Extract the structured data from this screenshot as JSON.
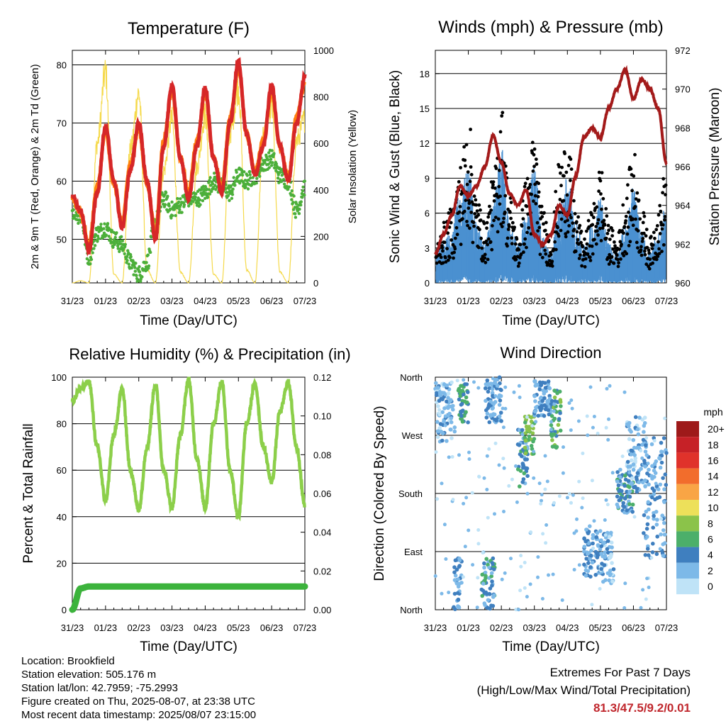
{
  "x_ticks": [
    "31/23",
    "01/23",
    "02/23",
    "03/23",
    "04/23",
    "05/23",
    "06/23",
    "07/23"
  ],
  "colors": {
    "temp_2m": "#d62728",
    "temp_9m": "#ff7f0e",
    "dewpoint": "#4caf3a",
    "solar": "#f5d94a",
    "sonic_wind": "#4a90d0",
    "gust": "#000000",
    "pressure": "#a31a1a",
    "humidity": "#8ccf4a",
    "rain": "#3cb33c"
  },
  "chart_data": [
    {
      "type": "line",
      "title": "Temperature (F)",
      "xlabel": "Time (Day/UTC)",
      "ylabel": "2m & 9m T (Red, Orange) & 2m Td (Green)",
      "y2label": "Solar Insolation (Yellow)",
      "ylim": [
        42.5,
        82.5
      ],
      "yticks": [
        50,
        60,
        70,
        80
      ],
      "y2lim": [
        0,
        1000
      ],
      "y2ticks": [
        0,
        200,
        400,
        600,
        800,
        1000
      ],
      "x": [
        0,
        0.25,
        0.5,
        0.75,
        1,
        1.25,
        1.5,
        1.75,
        2,
        2.25,
        2.5,
        2.75,
        3,
        3.25,
        3.5,
        3.75,
        4,
        4.25,
        4.5,
        4.75,
        5,
        5.25,
        5.5,
        5.75,
        6,
        6.25,
        6.5,
        6.75,
        7
      ],
      "series": [
        {
          "name": "2m T",
          "values": [
            57.5,
            55,
            48,
            58,
            69.5,
            60,
            52,
            62,
            70,
            60,
            50,
            66,
            76.5,
            64,
            57,
            66,
            76,
            64,
            58,
            70,
            80.5,
            68,
            61,
            66,
            76.5,
            66,
            60,
            70,
            78
          ]
        },
        {
          "name": "9m T",
          "values": [
            57,
            54.5,
            49,
            59,
            68.5,
            59.5,
            53,
            63,
            69,
            59.5,
            51,
            67,
            75.5,
            64,
            58,
            67,
            75,
            64,
            59,
            71,
            79.5,
            68,
            61.5,
            67,
            75.5,
            66,
            60.5,
            71,
            77
          ]
        },
        {
          "name": "2m Td",
          "values": [
            55,
            54,
            47,
            51,
            52,
            50,
            49,
            46,
            44,
            46,
            53,
            57,
            55,
            56,
            57,
            57,
            58,
            60,
            59,
            58,
            61,
            60,
            61,
            63,
            64,
            61,
            60,
            55,
            59
          ]
        },
        {
          "name": "Solar Insolation",
          "values": [
            0,
            10,
            0,
            650,
            980,
            40,
            0,
            620,
            880,
            60,
            0,
            520,
            760,
            50,
            0,
            540,
            780,
            40,
            0,
            700,
            900,
            60,
            0,
            680,
            820,
            50,
            0,
            660,
            760
          ]
        }
      ]
    },
    {
      "type": "line",
      "title": "Winds (mph) & Pressure (mb)",
      "xlabel": "Time (Day/UTC)",
      "ylabel": "Sonic Wind & Gust (Blue, Black)",
      "y2label": "Station Pressure (Maroon)",
      "ylim": [
        0,
        20
      ],
      "yticks": [
        0,
        3,
        6,
        9,
        12,
        15,
        18
      ],
      "y2lim": [
        960,
        972
      ],
      "y2ticks": [
        960,
        962,
        964,
        966,
        968,
        970,
        972
      ],
      "x": [
        0,
        0.25,
        0.5,
        0.75,
        1,
        1.25,
        1.5,
        1.75,
        2,
        2.25,
        2.5,
        2.75,
        3,
        3.25,
        3.5,
        3.75,
        4,
        4.25,
        4.5,
        4.75,
        5,
        5.25,
        5.5,
        5.75,
        6,
        6.25,
        6.5,
        6.75,
        7
      ],
      "series": [
        {
          "name": "Sonic Wind",
          "values": [
            1.5,
            2,
            3,
            4.5,
            6,
            3,
            2,
            4,
            7,
            3,
            2,
            3.5,
            6,
            2.5,
            1.5,
            4,
            5.5,
            3,
            2,
            3,
            4.5,
            2,
            1.5,
            3,
            5,
            2.5,
            1.5,
            2.5,
            4
          ]
        },
        {
          "name": "Gust",
          "values": [
            2.5,
            4,
            5,
            8,
            11,
            6,
            4,
            7,
            12,
            6,
            3,
            7,
            10,
            5,
            3,
            8,
            10,
            5,
            3,
            5,
            8,
            4,
            3,
            6,
            9,
            5,
            3,
            5,
            8
          ]
        },
        {
          "name": "Pressure",
          "values": [
            961.5,
            962.5,
            963.5,
            965,
            964.5,
            965,
            966,
            967.6,
            966.2,
            964.6,
            964,
            964.8,
            962.5,
            962,
            962.5,
            964,
            963.5,
            965.5,
            967.5,
            968,
            967.5,
            969,
            970,
            971,
            969.5,
            970.5,
            970,
            969,
            966.2
          ]
        }
      ]
    },
    {
      "type": "line",
      "title": "Relative Humidity (%) & Precipitation (in)",
      "xlabel": "Time (Day/UTC)",
      "ylabel": "Percent & Total Rainfall",
      "ylim": [
        0,
        100
      ],
      "yticks": [
        0,
        20,
        40,
        60,
        80,
        100
      ],
      "y2lim": [
        0,
        0.12
      ],
      "y2ticks": [
        0,
        0.02,
        0.04,
        0.06,
        0.08,
        0.1,
        0.12
      ],
      "x": [
        0,
        0.25,
        0.5,
        0.75,
        1,
        1.25,
        1.5,
        1.75,
        2,
        2.25,
        2.5,
        2.75,
        3,
        3.25,
        3.5,
        3.75,
        4,
        4.25,
        4.5,
        4.75,
        5,
        5.25,
        5.5,
        5.75,
        6,
        6.25,
        6.5,
        6.75,
        7
      ],
      "series": [
        {
          "name": "Relative Humidity",
          "values": [
            90,
            95,
            98,
            70,
            47,
            75,
            95,
            60,
            43,
            70,
            97,
            60,
            44,
            75,
            99,
            65,
            44,
            80,
            98,
            60,
            40,
            80,
            97,
            70,
            55,
            85,
            98,
            70,
            45
          ]
        },
        {
          "name": "Total Precipitation",
          "values": [
            0,
            0.011,
            0.012,
            0.012,
            0.012,
            0.012,
            0.012,
            0.012,
            0.012,
            0.012,
            0.012,
            0.012,
            0.012,
            0.012,
            0.012,
            0.012,
            0.012,
            0.012,
            0.012,
            0.012,
            0.012,
            0.012,
            0.012,
            0.012,
            0.012,
            0.012,
            0.012,
            0.012,
            0.012
          ]
        }
      ]
    },
    {
      "type": "scatter",
      "title": "Wind Direction",
      "xlabel": "Time (Day/UTC)",
      "ylabel": "Direction (Colored By Speed)",
      "ylim": [
        0,
        360
      ],
      "yticks_labels": [
        "North",
        "East",
        "South",
        "West",
        "North"
      ],
      "legend_title": "mph",
      "legend_labels": [
        "20+",
        "18",
        "16",
        "14",
        "12",
        "10",
        "8",
        "6",
        "4",
        "2",
        "0"
      ],
      "legend_colors": [
        "#9e1a1a",
        "#c62127",
        "#e0322b",
        "#f26d2c",
        "#f9a545",
        "#ede05a",
        "#8bc34a",
        "#4caf6a",
        "#3f7fbf",
        "#7db9e8",
        "#bfe3f7"
      ],
      "clusters": [
        {
          "x0": 0,
          "x1": 0.6,
          "d0": 260,
          "d1": 355,
          "speed": 2
        },
        {
          "x0": 0.55,
          "x1": 0.8,
          "d0": 0,
          "d1": 80,
          "speed": 3
        },
        {
          "x0": 0.7,
          "x1": 1.0,
          "d0": 290,
          "d1": 350,
          "speed": 5
        },
        {
          "x0": 1.4,
          "x1": 1.8,
          "d0": 0,
          "d1": 80,
          "speed": 4
        },
        {
          "x0": 1.5,
          "x1": 2.0,
          "d0": 290,
          "d1": 360,
          "speed": 3
        },
        {
          "x0": 2.5,
          "x1": 2.8,
          "d0": 190,
          "d1": 280,
          "speed": 4
        },
        {
          "x0": 2.7,
          "x1": 3.0,
          "d0": 240,
          "d1": 300,
          "speed": 7
        },
        {
          "x0": 3.0,
          "x1": 3.5,
          "d0": 300,
          "d1": 355,
          "speed": 3
        },
        {
          "x0": 3.5,
          "x1": 3.8,
          "d0": 250,
          "d1": 340,
          "speed": 6
        },
        {
          "x0": 4.5,
          "x1": 5.0,
          "d0": 50,
          "d1": 130,
          "speed": 3
        },
        {
          "x0": 5.0,
          "x1": 5.4,
          "d0": 40,
          "d1": 120,
          "speed": 2
        },
        {
          "x0": 5.5,
          "x1": 6.0,
          "d0": 150,
          "d1": 220,
          "speed": 4
        },
        {
          "x0": 5.8,
          "x1": 6.4,
          "d0": 180,
          "d1": 300,
          "speed": 2
        },
        {
          "x0": 6.3,
          "x1": 7.0,
          "d0": 80,
          "d1": 270,
          "speed": 3
        }
      ]
    }
  ],
  "station": {
    "location": "Location: Brookfield",
    "elevation": "Station elevation: 505.176 m",
    "latlon": "Station lat/lon: 42.7959; -75.2993",
    "created": "Figure created on Thu, 2025-08-07, at 23:38 UTC",
    "recent": "Most recent data timestamp: 2025/08/07 23:15:00"
  },
  "extremes": {
    "title": "Extremes For Past 7 Days",
    "subtitle": "(High/Low/Max Wind/Total Precipitation)",
    "values": "81.3/47.5/9.2/0.01"
  }
}
